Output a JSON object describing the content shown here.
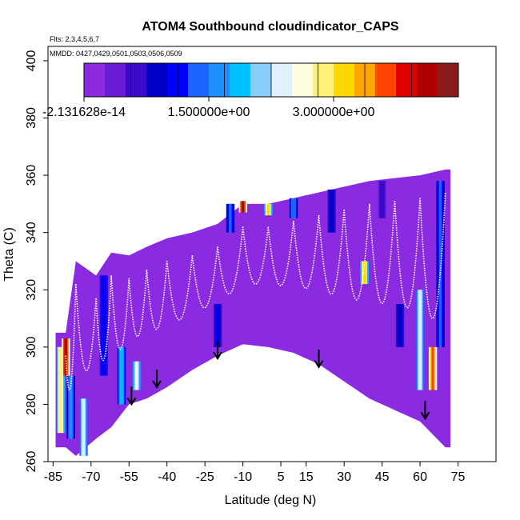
{
  "chart_data": {
    "type": "heatmap",
    "title": "ATOM4 Southbound cloudindicator_CAPS",
    "subtitle_flights": "Flts: 2,3,4,5,6,7",
    "subtitle_dates": "MMDD: 0427,0429,0501,0503,0506,0509",
    "xlabel": "Latitude (deg N)",
    "ylabel": "Theta (C)",
    "xlim": [
      -87,
      90
    ],
    "ylim": [
      260,
      405
    ],
    "x_ticks": [
      -85,
      -70,
      -55,
      -40,
      -25,
      -10,
      5,
      15,
      30,
      45,
      60,
      75
    ],
    "y_ticks": [
      260,
      280,
      300,
      320,
      340,
      360,
      380,
      400
    ],
    "colorbar": {
      "min": 0,
      "max": 4.5,
      "tick_values": [
        0,
        1.5,
        3.0
      ],
      "tick_labels": [
        "-2.131628e-14",
        "1.500000e+00",
        "3.000000e+00"
      ],
      "colors": [
        "#8a2be2",
        "#6a1bd6",
        "#3a0acb",
        "#0000c8",
        "#0000ff",
        "#1e64ff",
        "#1e90ff",
        "#00bfff",
        "#87cefa",
        "#e0f0ff",
        "#fffde0",
        "#fff07a",
        "#ffd700",
        "#ffa500",
        "#ff4500",
        "#e00000",
        "#b00000",
        "#8b1a1a"
      ]
    },
    "profiles": [
      {
        "lat": -80,
        "top": 305,
        "bottom": 265
      },
      {
        "lat": -76,
        "top": 330,
        "bottom": 262
      },
      {
        "lat": -68,
        "top": 325,
        "bottom": 268
      },
      {
        "lat": -62,
        "top": 333,
        "bottom": 272
      },
      {
        "lat": -55,
        "top": 332,
        "bottom": 280
      },
      {
        "lat": -48,
        "top": 335,
        "bottom": 282
      },
      {
        "lat": -40,
        "top": 338,
        "bottom": 286
      },
      {
        "lat": -30,
        "top": 340,
        "bottom": 292
      },
      {
        "lat": -20,
        "top": 343,
        "bottom": 297
      },
      {
        "lat": -10,
        "top": 350,
        "bottom": 301
      },
      {
        "lat": 0,
        "top": 350,
        "bottom": 300
      },
      {
        "lat": 10,
        "top": 352,
        "bottom": 298
      },
      {
        "lat": 20,
        "top": 354,
        "bottom": 294
      },
      {
        "lat": 30,
        "top": 356,
        "bottom": 288
      },
      {
        "lat": 40,
        "top": 358,
        "bottom": 282
      },
      {
        "lat": 50,
        "top": 359,
        "bottom": 278
      },
      {
        "lat": 60,
        "top": 360,
        "bottom": 274
      },
      {
        "lat": 70,
        "top": 362,
        "bottom": 265
      }
    ],
    "cloud_patches": [
      {
        "lat": -82,
        "theta_low": 270,
        "theta_high": 300,
        "value": 3.0
      },
      {
        "lat": -80,
        "theta_low": 290,
        "theta_high": 303,
        "value": 4.3
      },
      {
        "lat": -78,
        "theta_low": 268,
        "theta_high": 290,
        "value": 1.6
      },
      {
        "lat": -73,
        "theta_low": 262,
        "theta_high": 282,
        "value": 2.4
      },
      {
        "lat": -65,
        "theta_low": 290,
        "theta_high": 325,
        "value": 1.2
      },
      {
        "lat": -58,
        "theta_low": 280,
        "theta_high": 300,
        "value": 1.8
      },
      {
        "lat": -52,
        "theta_low": 285,
        "theta_high": 295,
        "value": 2.6
      },
      {
        "lat": -20,
        "theta_low": 300,
        "theta_high": 315,
        "value": 1.1
      },
      {
        "lat": -15,
        "theta_low": 340,
        "theta_high": 350,
        "value": 1.3
      },
      {
        "lat": -10,
        "theta_low": 347,
        "theta_high": 351,
        "value": 4.4
      },
      {
        "lat": 0,
        "theta_low": 346,
        "theta_high": 350,
        "value": 3.2
      },
      {
        "lat": 10,
        "theta_low": 345,
        "theta_high": 352,
        "value": 1.5
      },
      {
        "lat": 25,
        "theta_low": 340,
        "theta_high": 355,
        "value": 0.9
      },
      {
        "lat": 38,
        "theta_low": 322,
        "theta_high": 330,
        "value": 3.3
      },
      {
        "lat": 45,
        "theta_low": 345,
        "theta_high": 358,
        "value": 0.7
      },
      {
        "lat": 52,
        "theta_low": 300,
        "theta_high": 315,
        "value": 1.0
      },
      {
        "lat": 60,
        "theta_low": 285,
        "theta_high": 320,
        "value": 2.5
      },
      {
        "lat": 65,
        "theta_low": 285,
        "theta_high": 300,
        "value": 3.8
      },
      {
        "lat": 68,
        "theta_low": 300,
        "theta_high": 358,
        "value": 1.4
      }
    ],
    "arrows": [
      {
        "lat": -54,
        "theta": 280
      },
      {
        "lat": -44,
        "theta": 286
      },
      {
        "lat": -20,
        "theta": 296
      },
      {
        "lat": 20,
        "theta": 293
      },
      {
        "lat": 62,
        "theta": 275
      }
    ],
    "grid": false
  }
}
